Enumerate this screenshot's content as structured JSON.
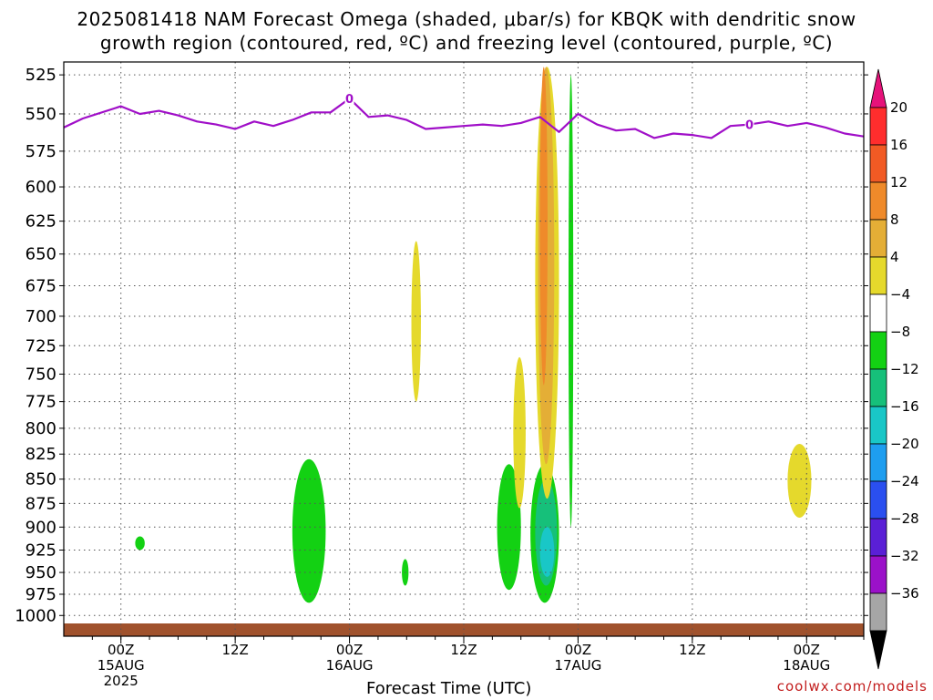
{
  "title": {
    "line1": "2025081418 NAM Forecast Omega (shaded, μbar/s) for KBQK with dendritic snow",
    "line2": "growth region (contoured, red, ºC) and freezing level (contoured, purple, ºC)"
  },
  "chart_data": {
    "type": "heatmap",
    "title": "2025081418 NAM Forecast Omega (shaded, μbar/s) for KBQK with dendritic snow growth region (contoured, red, ºC) and freezing level (contoured, purple, ºC)",
    "xlabel": "Forecast Time (UTC)",
    "ylabel": "",
    "y_ticks": [
      525,
      550,
      575,
      600,
      625,
      650,
      675,
      700,
      725,
      750,
      775,
      800,
      825,
      850,
      875,
      900,
      925,
      950,
      975,
      1000
    ],
    "y_range": [
      1025,
      517
    ],
    "y_scale": "log-pressure",
    "x_ticks": [
      {
        "hour": 24,
        "label": "00Z",
        "date": "15AUG",
        "year": "2025"
      },
      {
        "hour": 36,
        "label": "12Z",
        "date": "",
        "year": ""
      },
      {
        "hour": 48,
        "label": "00Z",
        "date": "16AUG",
        "year": ""
      },
      {
        "hour": 60,
        "label": "12Z",
        "date": "",
        "year": ""
      },
      {
        "hour": 72,
        "label": "00Z",
        "date": "17AUG",
        "year": ""
      },
      {
        "hour": 84,
        "label": "12Z",
        "date": "",
        "year": ""
      },
      {
        "hour": 96,
        "label": "00Z",
        "date": "18AUG",
        "year": ""
      }
    ],
    "x_range": [
      18,
      84
    ],
    "grid": true,
    "colorbar": {
      "labels": [
        "20",
        "16",
        "12",
        "8",
        "4",
        "−4",
        "−8",
        "−12",
        "−16",
        "−20",
        "−24",
        "−28",
        "−32",
        "−36"
      ],
      "colors": [
        "#ff2d2d",
        "#f15a24",
        "#ef8a2a",
        "#e4ae36",
        "#e5d92c",
        "#ffffff",
        "#13d113",
        "#16c07a",
        "#19c7c7",
        "#1e9ef0",
        "#2a4ff0",
        "#5a1fd6",
        "#9b11c9",
        "#a6a6a6"
      ],
      "top_color": "#e6127a",
      "bottom_color": "#000000"
    },
    "freezing_level": {
      "color": "#a00fc8",
      "label": "0",
      "hours": [
        18,
        20,
        24,
        26,
        28,
        30,
        32,
        34,
        36,
        38,
        40,
        42,
        44,
        46,
        48,
        50,
        52,
        54,
        56,
        58,
        60,
        62,
        64,
        66,
        68,
        70,
        72,
        74,
        76,
        78,
        80,
        82,
        84,
        86,
        88,
        90,
        92,
        94,
        96,
        98,
        100,
        102
      ],
      "pressure": [
        559,
        553,
        545,
        550,
        548,
        551,
        555,
        557,
        560,
        555,
        558,
        554,
        549,
        549,
        540,
        552,
        551,
        554,
        560,
        559,
        558,
        557,
        558,
        556,
        552,
        562,
        550,
        557,
        561,
        560,
        566,
        563,
        564,
        566,
        558,
        557,
        555,
        558,
        556,
        559,
        563,
        565
      ]
    },
    "surface_color": "#a0522d",
    "omega_regions": [
      {
        "level": "-4 to -8",
        "color": "#13d113",
        "hours": [
          25.5,
          26.5
        ],
        "pressure": [
          910,
          925
        ]
      },
      {
        "level": "-4 to -8",
        "color": "#13d113",
        "hours": [
          42,
          45.5
        ],
        "pressure": [
          830,
          985
        ]
      },
      {
        "level": "-4 to -8",
        "color": "#13d113",
        "hours": [
          53.5,
          54.2
        ],
        "pressure": [
          935,
          965
        ]
      },
      {
        "level": "-4 to -8",
        "color": "#13d113",
        "hours": [
          63.5,
          66
        ],
        "pressure": [
          835,
          970
        ]
      },
      {
        "level": "-4 to -8",
        "color": "#13d113",
        "hours": [
          67,
          70
        ],
        "pressure": [
          835,
          985
        ]
      },
      {
        "level": "-8 to -12",
        "color": "#16c07a",
        "hours": [
          67.5,
          69.8
        ],
        "pressure": [
          850,
          965
        ]
      },
      {
        "level": "-12 to -16",
        "color": "#19c7c7",
        "hours": [
          68,
          69.5
        ],
        "pressure": [
          900,
          955
        ]
      },
      {
        "level": "-4 to -8",
        "color": "#13d113",
        "hours": [
          71,
          71.5
        ],
        "pressure": [
          525,
          900
        ]
      },
      {
        "level": "4 to 8",
        "color": "#e5d92c",
        "hours": [
          54.5,
          55.5
        ],
        "pressure": [
          640,
          775
        ]
      },
      {
        "level": "4 to 8",
        "color": "#e5d92c",
        "hours": [
          65.2,
          66.5
        ],
        "pressure": [
          735,
          880
        ]
      },
      {
        "level": "4 to 8",
        "color": "#e5d92c",
        "hours": [
          67.5,
          70
        ],
        "pressure": [
          520,
          870
        ]
      },
      {
        "level": "8 to 12",
        "color": "#e4ae36",
        "hours": [
          67.8,
          69.5
        ],
        "pressure": [
          520,
          835
        ]
      },
      {
        "level": "12 to 16",
        "color": "#ef8a2a",
        "hours": [
          68,
          68.8
        ],
        "pressure": [
          520,
          760
        ]
      },
      {
        "level": "4 to 8",
        "color": "#e5d92c",
        "hours": [
          94,
          96.5
        ],
        "pressure": [
          815,
          890
        ]
      }
    ]
  },
  "credit": "coolwx.com/models"
}
